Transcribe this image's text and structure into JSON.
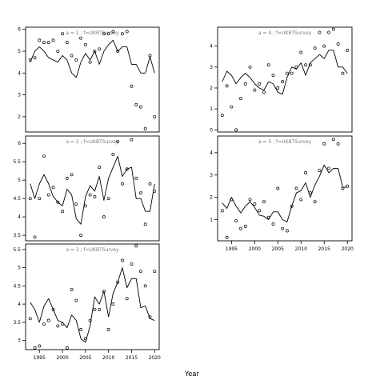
{
  "chart_data": [
    {
      "type": "scatter",
      "title": "a = 1  ;  f=UKBTSurvey",
      "xlim": [
        1992,
        2021
      ],
      "ylim": [
        1.3,
        6.1
      ],
      "yticks": [
        2,
        3,
        4,
        5,
        6
      ],
      "series": [
        {
          "kind": "points",
          "x": [
            1993,
            1994,
            1995,
            1996,
            1997,
            1998,
            1999,
            2000,
            2001,
            2002,
            2003,
            2004,
            2005,
            2006,
            2007,
            2008,
            2009,
            2010,
            2011,
            2012,
            2013,
            2014,
            2015,
            2016,
            2017,
            2018,
            2019,
            2020
          ],
          "y": [
            4.6,
            4.7,
            5.5,
            5.4,
            5.4,
            5.5,
            5.0,
            5.8,
            5.4,
            4.8,
            4.6,
            5.6,
            5.3,
            4.5,
            5.0,
            5.1,
            5.8,
            5.8,
            5.9,
            5.0,
            5.8,
            5.9,
            3.4,
            2.55,
            2.45,
            1.45,
            4.8,
            2.0
          ]
        },
        {
          "kind": "line",
          "x": [
            1993,
            1994,
            1995,
            1996,
            1997,
            1998,
            1999,
            2000,
            2001,
            2002,
            2003,
            2004,
            2005,
            2006,
            2007,
            2008,
            2009,
            2010,
            2011,
            2012,
            2013,
            2014,
            2015,
            2016,
            2017,
            2018,
            2019,
            2020
          ],
          "y": [
            4.5,
            5.0,
            5.2,
            5.0,
            4.7,
            4.6,
            4.5,
            4.8,
            4.6,
            4.0,
            3.8,
            4.5,
            4.9,
            4.6,
            5.0,
            4.4,
            5.0,
            5.3,
            5.5,
            5.0,
            5.2,
            5.2,
            4.4,
            4.4,
            4.0,
            4.0,
            4.75,
            4.0
          ]
        }
      ]
    },
    {
      "type": "scatter",
      "title": "a = 2  ;  f=UKBTSurvey",
      "xlim": [
        1992,
        2021
      ],
      "ylim": [
        3.35,
        6.2
      ],
      "yticks": [
        3.5,
        4.0,
        4.5,
        5.0,
        5.5,
        6.0
      ],
      "series": [
        {
          "kind": "points",
          "x": [
            1993,
            1994,
            1995,
            1996,
            1997,
            1998,
            1999,
            2000,
            2001,
            2002,
            2003,
            2004,
            2005,
            2006,
            2007,
            2008,
            2009,
            2010,
            2011,
            2012,
            2013,
            2014,
            2015,
            2016,
            2017,
            2018,
            2019,
            2020
          ],
          "y": [
            4.5,
            3.45,
            4.5,
            5.65,
            4.6,
            4.8,
            4.4,
            4.15,
            5.05,
            5.15,
            4.35,
            3.5,
            4.3,
            4.6,
            4.55,
            5.35,
            4.0,
            4.5,
            5.7,
            6.05,
            4.9,
            5.3,
            6.1,
            5.05,
            4.65,
            3.8,
            4.9,
            4.7
          ]
        },
        {
          "kind": "line",
          "x": [
            1993,
            1994,
            1995,
            1996,
            1997,
            1998,
            1999,
            2000,
            2001,
            2002,
            2003,
            2004,
            2005,
            2006,
            2007,
            2008,
            2009,
            2010,
            2011,
            2012,
            2013,
            2014,
            2015,
            2016,
            2017,
            2018,
            2019,
            2020
          ],
          "y": [
            4.9,
            4.5,
            4.9,
            5.15,
            4.9,
            4.55,
            4.4,
            4.3,
            4.75,
            4.6,
            3.95,
            3.8,
            4.55,
            4.85,
            4.7,
            5.1,
            4.45,
            5.05,
            5.35,
            5.65,
            5.1,
            5.3,
            5.35,
            4.5,
            4.5,
            4.15,
            4.15,
            4.9
          ]
        }
      ]
    },
    {
      "type": "scatter",
      "title": "a = 3  ;  f=UKBTSurvey",
      "xlim": [
        1992,
        2021
      ],
      "ylim": [
        2.75,
        5.65
      ],
      "yticks": [
        3.0,
        3.5,
        4.0,
        4.5,
        5.0,
        5.5
      ],
      "series": [
        {
          "kind": "points",
          "x": [
            1993,
            1994,
            1995,
            1996,
            1997,
            1998,
            1999,
            2000,
            2001,
            2002,
            2003,
            2004,
            2005,
            2006,
            2007,
            2008,
            2009,
            2010,
            2011,
            2012,
            2013,
            2014,
            2015,
            2016,
            2017,
            2018,
            2019,
            2020
          ],
          "y": [
            3.6,
            2.8,
            2.85,
            3.45,
            3.55,
            3.85,
            3.4,
            3.45,
            2.8,
            4.4,
            4.1,
            3.3,
            3.05,
            3.55,
            3.85,
            3.85,
            4.35,
            3.3,
            4.0,
            4.6,
            5.2,
            4.15,
            5.1,
            5.6,
            4.9,
            4.5,
            3.65,
            4.9
          ]
        },
        {
          "kind": "line",
          "x": [
            1993,
            1994,
            1995,
            1996,
            1997,
            1998,
            1999,
            2000,
            2001,
            2002,
            2003,
            2004,
            2005,
            2006,
            2007,
            2008,
            2009,
            2010,
            2011,
            2012,
            2013,
            2014,
            2015,
            2016,
            2017,
            2018,
            2019,
            2020
          ],
          "y": [
            4.05,
            3.85,
            3.5,
            3.95,
            4.15,
            3.85,
            3.55,
            3.5,
            3.35,
            3.7,
            3.55,
            3.05,
            2.95,
            3.4,
            4.2,
            4.0,
            4.35,
            3.65,
            4.3,
            4.6,
            5.0,
            4.45,
            4.7,
            4.7,
            3.9,
            3.95,
            3.6,
            3.55
          ]
        }
      ]
    },
    {
      "type": "scatter",
      "title": "a = 4  ;  f=UKBTSurvey",
      "xlim": [
        1992,
        2021
      ],
      "ylim": [
        -0.1,
        4.9
      ],
      "yticks": [
        0,
        1,
        2,
        3,
        4
      ],
      "series": [
        {
          "kind": "points",
          "x": [
            1993,
            1994,
            1995,
            1996,
            1997,
            1998,
            1999,
            2000,
            2001,
            2002,
            2003,
            2004,
            2005,
            2006,
            2007,
            2008,
            2009,
            2010,
            2011,
            2012,
            2013,
            2014,
            2015,
            2016,
            2017,
            2018,
            2019,
            2020
          ],
          "y": [
            0.7,
            2.1,
            1.1,
            0.0,
            1.5,
            2.2,
            3.0,
            1.9,
            2.2,
            1.8,
            3.1,
            2.6,
            2.0,
            2.3,
            2.7,
            2.7,
            3.0,
            3.7,
            3.1,
            3.1,
            3.9,
            4.65,
            4.0,
            4.65,
            4.8,
            4.1,
            2.7,
            3.8
          ]
        },
        {
          "kind": "line",
          "x": [
            1993,
            1994,
            1995,
            1996,
            1997,
            1998,
            1999,
            2000,
            2001,
            2002,
            2003,
            2004,
            2005,
            2006,
            2007,
            2008,
            2009,
            2010,
            2011,
            2012,
            2013,
            2014,
            2015,
            2016,
            2017,
            2018,
            2019,
            2020
          ],
          "y": [
            2.3,
            2.8,
            2.6,
            2.2,
            2.5,
            2.7,
            2.5,
            2.2,
            2.0,
            1.9,
            2.3,
            2.2,
            1.8,
            1.7,
            2.5,
            3.0,
            2.9,
            3.2,
            2.6,
            3.2,
            3.4,
            3.6,
            3.4,
            3.8,
            3.8,
            3.0,
            3.0,
            2.7
          ]
        }
      ]
    },
    {
      "type": "scatter",
      "title": "a = 5  ;  f=UKBTSurvey",
      "xlim": [
        1992,
        2021
      ],
      "ylim": [
        0.05,
        4.75
      ],
      "yticks": [
        1,
        2,
        3,
        4
      ],
      "series": [
        {
          "kind": "points",
          "x": [
            1993,
            1994,
            1995,
            1996,
            1997,
            1998,
            1999,
            2000,
            2001,
            2002,
            2003,
            2004,
            2005,
            2006,
            2007,
            2008,
            2009,
            2010,
            2011,
            2012,
            2013,
            2014,
            2015,
            2016,
            2017,
            2018,
            2019,
            2020
          ],
          "y": [
            1.4,
            0.2,
            1.9,
            0.95,
            0.6,
            0.7,
            1.9,
            1.7,
            1.4,
            1.8,
            1.1,
            0.8,
            2.4,
            0.6,
            0.5,
            1.6,
            2.4,
            1.9,
            3.1,
            2.2,
            1.8,
            3.2,
            4.4,
            3.3,
            4.6,
            4.4,
            2.4,
            2.5
          ]
        },
        {
          "kind": "line",
          "x": [
            1993,
            1994,
            1995,
            1996,
            1997,
            1998,
            1999,
            2000,
            2001,
            2002,
            2003,
            2004,
            2005,
            2006,
            2007,
            2008,
            2009,
            2010,
            2011,
            2012,
            2013,
            2014,
            2015,
            2016,
            2017,
            2018,
            2019,
            2020
          ],
          "y": [
            1.75,
            1.5,
            2.0,
            1.6,
            1.3,
            1.6,
            1.8,
            1.55,
            1.2,
            1.15,
            1.0,
            1.35,
            1.35,
            1.0,
            0.9,
            1.6,
            2.2,
            2.3,
            2.65,
            2.0,
            2.55,
            2.95,
            3.45,
            3.1,
            3.3,
            3.3,
            2.45,
            2.45
          ]
        }
      ]
    }
  ],
  "xticks": [
    1995,
    2000,
    2005,
    2010,
    2015,
    2020
  ],
  "xlabel": "Year",
  "colors": {
    "ink": "#000000",
    "frame": "#000000",
    "title_text": "#7a7a7a"
  }
}
